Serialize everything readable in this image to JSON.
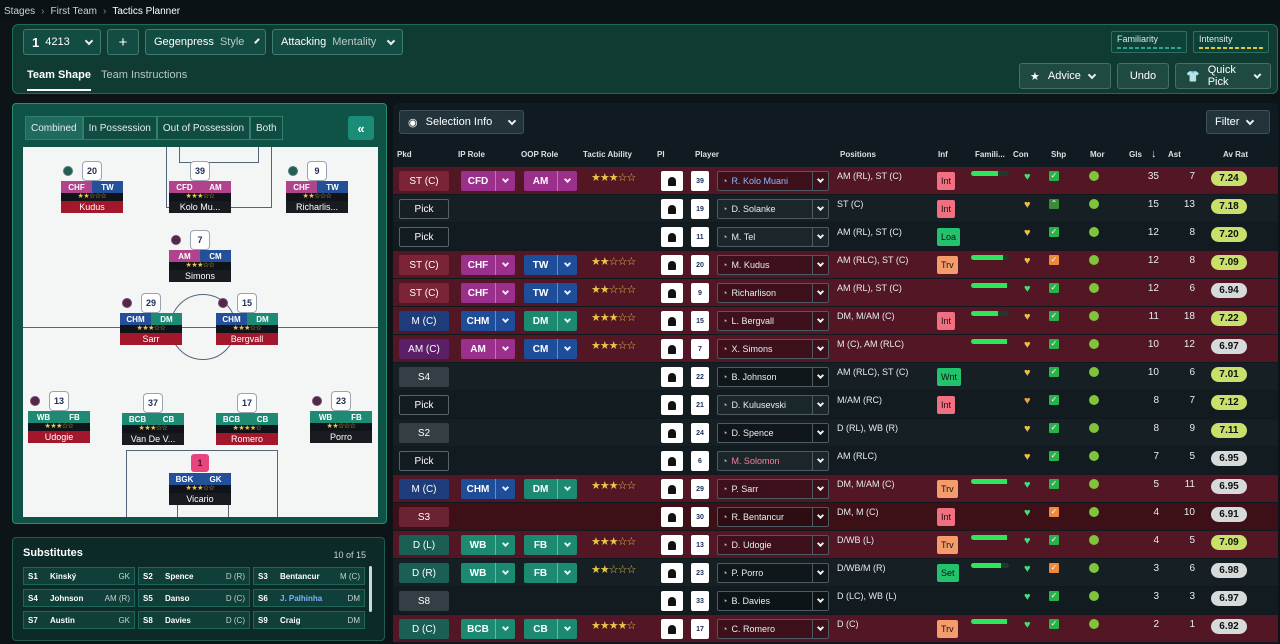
{
  "breadcrumb": {
    "a": "Stages",
    "b": "First Team",
    "c": "Tactics Planner"
  },
  "header": {
    "slot": "1",
    "formation": "4213",
    "add": "+",
    "style_value": "Gegenpress",
    "style_label": "Style",
    "mentality_value": "Attacking",
    "mentality_label": "Mentality",
    "familiarity": "Familiarity",
    "intensity": "Intensity",
    "tab1": "Team Shape",
    "tab2": "Team Instructions",
    "advice": "Advice",
    "undo": "Undo",
    "quickpick": "Quick Pick"
  },
  "pitch_tabs": [
    "Combined",
    "In Possession",
    "Out of Possession",
    "Both"
  ],
  "collapse": "«",
  "pitch_players": [
    {
      "num": "20",
      "r1": "CHF",
      "r2": "TW",
      "stars": "★★☆☆☆",
      "name": "Kudus",
      "c1": "mag",
      "c2": "blu",
      "red": true,
      "badge": "g"
    },
    {
      "num": "39",
      "r1": "CFD",
      "r2": "AM",
      "stars": "★★★☆☆",
      "name": "Kolo Mu...",
      "c1": "mag",
      "c2": "mag",
      "red": false,
      "badge": ""
    },
    {
      "num": "9",
      "r1": "CHF",
      "r2": "TW",
      "stars": "★★☆☆☆",
      "name": "Richarlis...",
      "c1": "mag",
      "c2": "blu",
      "red": false,
      "badge": "g"
    },
    {
      "num": "7",
      "r1": "AM",
      "r2": "CM",
      "stars": "★★★☆☆",
      "name": "Simons",
      "c1": "mag",
      "c2": "blu",
      "red": false,
      "badge": "m"
    },
    {
      "num": "29",
      "r1": "CHM",
      "r2": "DM",
      "stars": "★★★☆☆",
      "name": "Sarr",
      "c1": "blu",
      "c2": "grn",
      "red": true,
      "badge": "m"
    },
    {
      "num": "15",
      "r1": "CHM",
      "r2": "DM",
      "stars": "★★★☆☆",
      "name": "Bergvall",
      "c1": "blu",
      "c2": "grn",
      "red": true,
      "badge": "m"
    },
    {
      "num": "13",
      "r1": "WB",
      "r2": "FB",
      "stars": "★★★☆☆",
      "name": "Udogie",
      "c1": "grn",
      "c2": "grn",
      "red": true,
      "badge": "m"
    },
    {
      "num": "37",
      "r1": "BCB",
      "r2": "CB",
      "stars": "★★★☆☆",
      "name": "Van De V...",
      "c1": "grn",
      "c2": "grn",
      "red": false,
      "badge": ""
    },
    {
      "num": "17",
      "r1": "BCB",
      "r2": "CB",
      "stars": "★★★★☆",
      "name": "Romero",
      "c1": "grn",
      "c2": "grn",
      "red": true,
      "badge": ""
    },
    {
      "num": "23",
      "r1": "WB",
      "r2": "FB",
      "stars": "★★☆☆☆",
      "name": "Porro",
      "c1": "grn",
      "c2": "grn",
      "red": false,
      "badge": "m"
    },
    {
      "num": "1",
      "r1": "BGK",
      "r2": "GK",
      "stars": "★★★☆☆",
      "name": "Vicario",
      "c1": "blu",
      "c2": "blu",
      "red": false,
      "badge": "",
      "gk": true
    }
  ],
  "subs": {
    "title": "Substitutes",
    "count": "10 of 15",
    "items": [
      {
        "s": "S1",
        "n": "Kinský",
        "p": "GK"
      },
      {
        "s": "S2",
        "n": "Spence",
        "p": "D (R)"
      },
      {
        "s": "S3",
        "n": "Bentancur",
        "p": "M (C)"
      },
      {
        "s": "S4",
        "n": "Johnson",
        "p": "AM (R)"
      },
      {
        "s": "S5",
        "n": "Danso",
        "p": "D (C)"
      },
      {
        "s": "S6",
        "n": "J. Palhinha",
        "p": "DM",
        "blue": true
      },
      {
        "s": "S7",
        "n": "Austin",
        "p": "GK"
      },
      {
        "s": "S8",
        "n": "Davies",
        "p": "D (C)"
      },
      {
        "s": "S9",
        "n": "Craig",
        "p": "DM"
      }
    ]
  },
  "table": {
    "selection_info": "Selection Info",
    "filter": "Filter",
    "headers": {
      "pkd": "Pkd",
      "ip": "IP Role",
      "oop": "OOP Role",
      "ta": "Tactic Ability",
      "pi": "PI",
      "player": "Player",
      "positions": "Positions",
      "inf": "Inf",
      "fam": "Famili...",
      "con": "Con",
      "shp": "Shp",
      "mor": "Mor",
      "gls": "Gls",
      "sort": "↓",
      "ast": "Ast",
      "avr": "Av Rat"
    },
    "rows": [
      {
        "pkd": "ST (C)",
        "ip": "CFD",
        "oop": "AM",
        "ipc": "mag",
        "oopc": "mag",
        "ta": "★★★☆☆",
        "num": "39",
        "name": "R. Kolo Muani",
        "nc": "b",
        "pos": "AM (RL), ST (C)",
        "inf": "Int",
        "infc": "int",
        "fam": 0.7,
        "con": "#3fe27a",
        "shp": "g",
        "gls": "35",
        "ast": "7",
        "avr": "7.24",
        "bg": "#521624",
        "pc": "#7a2436"
      },
      {
        "pkd": "Pick",
        "ip": "",
        "oop": "",
        "ta": "",
        "num": "19",
        "name": "D. Solanke",
        "nc": "",
        "pos": "ST (C)",
        "inf": "Int",
        "infc": "int",
        "fam": 0,
        "con": "#f0c040",
        "shp": "gg",
        "gls": "15",
        "ast": "13",
        "avr": "7.18",
        "bg": "#161f24",
        "pc": ""
      },
      {
        "pkd": "Pick",
        "ip": "",
        "oop": "",
        "ta": "",
        "num": "11",
        "name": "M. Tel",
        "nc": "",
        "pos": "AM (RL), ST (C)",
        "inf": "Loa",
        "infc": "loa",
        "fam": 0,
        "con": "#f0c040",
        "shp": "g",
        "gls": "12",
        "ast": "8",
        "avr": "7.20",
        "bg": "#121b20",
        "pc": ""
      },
      {
        "pkd": "ST (C)",
        "ip": "CHF",
        "oop": "TW",
        "ipc": "mag",
        "oopc": "blu",
        "ta": "★★☆☆☆",
        "num": "20",
        "name": "M. Kudus",
        "nc": "",
        "pos": "AM (RLC), ST (C)",
        "inf": "Trv",
        "infc": "trv",
        "fam": 0.85,
        "con": "#f0c040",
        "shp": "o",
        "gls": "12",
        "ast": "8",
        "avr": "7.09",
        "bg": "#521624",
        "pc": "#7a2436"
      },
      {
        "pkd": "ST (C)",
        "ip": "CHF",
        "oop": "TW",
        "ipc": "mag",
        "oopc": "blu",
        "ta": "★★☆☆☆",
        "num": "9",
        "name": "Richarlison",
        "nc": "",
        "pos": "AM (RL), ST (C)",
        "inf": "",
        "infc": "",
        "fam": 0.95,
        "con": "#3fe27a",
        "shp": "g",
        "gls": "12",
        "ast": "6",
        "avr": "6.94",
        "bg": "#521624",
        "pc": "#7a2436"
      },
      {
        "pkd": "M (C)",
        "ip": "CHM",
        "oop": "DM",
        "ipc": "blu",
        "oopc": "grn",
        "ta": "★★★☆☆",
        "num": "15",
        "name": "L. Bergvall",
        "nc": "",
        "pos": "DM, M/AM (C)",
        "inf": "Int",
        "infc": "int",
        "fam": 0.7,
        "con": "#f0c040",
        "shp": "g",
        "gls": "11",
        "ast": "18",
        "avr": "7.22",
        "bg": "#521624",
        "pc": "#1f3d7a"
      },
      {
        "pkd": "AM (C)",
        "ip": "AM",
        "oop": "CM",
        "ipc": "mag",
        "oopc": "blu",
        "ta": "★★★☆☆",
        "num": "7",
        "name": "X. Simons",
        "nc": "",
        "pos": "M (C), AM (RLC)",
        "inf": "",
        "infc": "",
        "fam": 0.95,
        "con": "#f0c040",
        "shp": "g",
        "gls": "10",
        "ast": "12",
        "avr": "6.97",
        "bg": "#521624",
        "pc": "#5a1f66"
      },
      {
        "pkd": "S4",
        "ip": "",
        "oop": "",
        "ta": "",
        "num": "22",
        "name": "B. Johnson",
        "nc": "",
        "pos": "AM (RLC), ST (C)",
        "inf": "Wnt",
        "infc": "wnt",
        "fam": 0,
        "con": "#f0c040",
        "shp": "g",
        "gls": "10",
        "ast": "6",
        "avr": "7.01",
        "bg": "#161f24",
        "pc": "#333f44"
      },
      {
        "pkd": "Pick",
        "ip": "",
        "oop": "",
        "ta": "",
        "num": "21",
        "name": "D. Kulusevski",
        "nc": "",
        "pos": "M/AM (RC)",
        "inf": "Int",
        "infc": "int",
        "fam": 0,
        "con": "#f0a040",
        "shp": "g",
        "gls": "8",
        "ast": "7",
        "avr": "7.12",
        "bg": "#121b20",
        "pc": ""
      },
      {
        "pkd": "S2",
        "ip": "",
        "oop": "",
        "ta": "",
        "num": "24",
        "name": "D. Spence",
        "nc": "",
        "pos": "D (RL), WB (R)",
        "inf": "",
        "infc": "",
        "fam": 0,
        "con": "#f0c040",
        "shp": "g",
        "gls": "8",
        "ast": "9",
        "avr": "7.11",
        "bg": "#161f24",
        "pc": "#333f44"
      },
      {
        "pkd": "Pick",
        "ip": "",
        "oop": "",
        "ta": "",
        "num": "6",
        "name": "M. Solomon",
        "nc": "r",
        "pos": "AM (RLC)",
        "inf": "",
        "infc": "",
        "fam": 0,
        "con": "#f0c040",
        "shp": "g",
        "gls": "7",
        "ast": "5",
        "avr": "6.95",
        "bg": "#121b20",
        "pc": ""
      },
      {
        "pkd": "M (C)",
        "ip": "CHM",
        "oop": "DM",
        "ipc": "blu",
        "oopc": "grn",
        "ta": "★★★☆☆",
        "num": "29",
        "name": "P. Sarr",
        "nc": "",
        "pos": "DM, M/AM (C)",
        "inf": "Trv",
        "infc": "trv",
        "fam": 0.95,
        "con": "#3fe27a",
        "shp": "g",
        "gls": "5",
        "ast": "11",
        "avr": "6.95",
        "bg": "#521624",
        "pc": "#1f3d7a"
      },
      {
        "pkd": "S3",
        "ip": "",
        "oop": "",
        "ta": "",
        "num": "30",
        "name": "R. Bentancur",
        "nc": "",
        "pos": "DM, M (C)",
        "inf": "Int",
        "infc": "int",
        "fam": 0,
        "con": "#3fe27a",
        "shp": "o",
        "gls": "4",
        "ast": "10",
        "avr": "6.91",
        "bg": "#3d1018",
        "pc": "#6b2233"
      },
      {
        "pkd": "D (L)",
        "ip": "WB",
        "oop": "FB",
        "ipc": "grn",
        "oopc": "grn",
        "ta": "★★★☆☆",
        "num": "13",
        "name": "D. Udogie",
        "nc": "",
        "pos": "D/WB (L)",
        "inf": "Trv",
        "infc": "trv",
        "fam": 0.95,
        "con": "#3fe27a",
        "shp": "g",
        "gls": "4",
        "ast": "5",
        "avr": "7.09",
        "bg": "#521624",
        "pc": "#1b5e54"
      },
      {
        "pkd": "D (R)",
        "ip": "WB",
        "oop": "FB",
        "ipc": "grn",
        "oopc": "grn",
        "ta": "★★☆☆☆",
        "num": "23",
        "name": "P. Porro",
        "nc": "",
        "pos": "D/WB/M (R)",
        "inf": "Set",
        "infc": "set",
        "fam": 0.8,
        "con": "#3fe27a",
        "shp": "o",
        "gls": "3",
        "ast": "6",
        "avr": "6.98",
        "bg": "#161f24",
        "pc": "#1b5e54"
      },
      {
        "pkd": "S8",
        "ip": "",
        "oop": "",
        "ta": "",
        "num": "33",
        "name": "B. Davies",
        "nc": "",
        "pos": "D (LC), WB (L)",
        "inf": "",
        "infc": "",
        "fam": 0,
        "con": "#3fe27a",
        "shp": "g",
        "gls": "3",
        "ast": "3",
        "avr": "6.97",
        "bg": "#121b20",
        "pc": "#333f44"
      },
      {
        "pkd": "D (C)",
        "ip": "BCB",
        "oop": "CB",
        "ipc": "grn",
        "oopc": "grn",
        "ta": "★★★★☆",
        "num": "17",
        "name": "C. Romero",
        "nc": "",
        "pos": "D (C)",
        "inf": "Trv",
        "infc": "trv",
        "fam": 0.95,
        "con": "#3fe27a",
        "shp": "g",
        "gls": "2",
        "ast": "1",
        "avr": "6.92",
        "bg": "#521624",
        "pc": "#1b5e54"
      }
    ]
  }
}
